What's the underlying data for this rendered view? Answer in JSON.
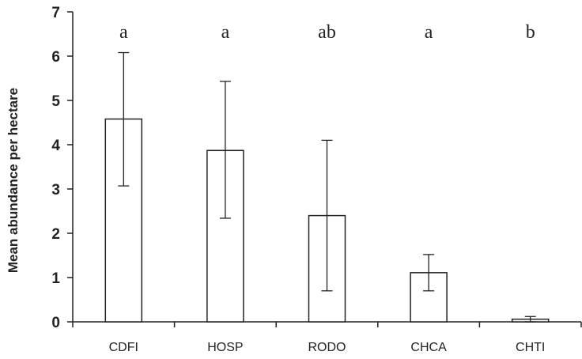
{
  "chart_data": {
    "type": "bar",
    "title": "",
    "xlabel": "",
    "ylabel": "Mean abundance per hectare",
    "ylim": [
      0,
      7
    ],
    "yticks": [
      0,
      1,
      2,
      3,
      4,
      5,
      6,
      7
    ],
    "grid": false,
    "categories": [
      "CDFI",
      "HOSP",
      "RODO",
      "CHCA",
      "CHTI"
    ],
    "values": [
      4.58,
      3.87,
      2.4,
      1.11,
      0.06
    ],
    "error_low": [
      3.07,
      2.34,
      0.7,
      0.7,
      0.0
    ],
    "error_high": [
      6.08,
      5.43,
      4.1,
      1.52,
      0.12
    ],
    "significance_labels": [
      "a",
      "a",
      "ab",
      "a",
      "b"
    ],
    "colors": {
      "bar_fill": "#ffffff",
      "stroke": "#222222"
    }
  }
}
